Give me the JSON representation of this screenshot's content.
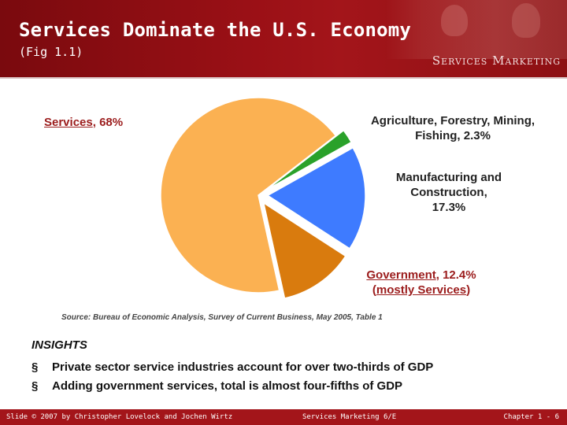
{
  "header": {
    "title": "Services Dominate the U.S. Economy",
    "subtitle": "(Fig 1.1)",
    "brand": "Services Marketing"
  },
  "chart_data": {
    "type": "pie",
    "title": "",
    "slices": [
      {
        "name": "Services",
        "value": 68,
        "label_name": "Services",
        "label_value": ", 68%",
        "color": "#fbb152"
      },
      {
        "name": "Agriculture, Forestry, Mining, Fishing",
        "value": 2.3,
        "label_line1": "Agriculture, Forestry, Mining,",
        "label_line2": "Fishing, 2.3%",
        "color": "#2aa12a"
      },
      {
        "name": "Manufacturing and Construction",
        "value": 17.3,
        "label_line1": "Manufacturing and",
        "label_line2": "Construction,",
        "label_line3": "17.3%",
        "color": "#3e7bff"
      },
      {
        "name": "Government",
        "value": 12.4,
        "label_name": "Government",
        "label_value": ", 12.4%",
        "label_line2_pre": "(",
        "label_line2_u": "mostly Services",
        "label_line2_post": ")",
        "color": "#d97b0e"
      }
    ],
    "source": "Source: Bureau of Economic Analysis, Survey of Current Business, May 2005, Table 1"
  },
  "insights": {
    "title": "INSIGHTS",
    "bullet_char": "§",
    "items": [
      "Private sector service industries account for over two-thirds of GDP",
      "Adding government services, total is almost four-fifths of GDP"
    ]
  },
  "footer": {
    "left": "Slide © 2007 by Christopher Lovelock and Jochen Wirtz",
    "middle": "Services Marketing 6/E",
    "right": "Chapter 1 - 6"
  }
}
